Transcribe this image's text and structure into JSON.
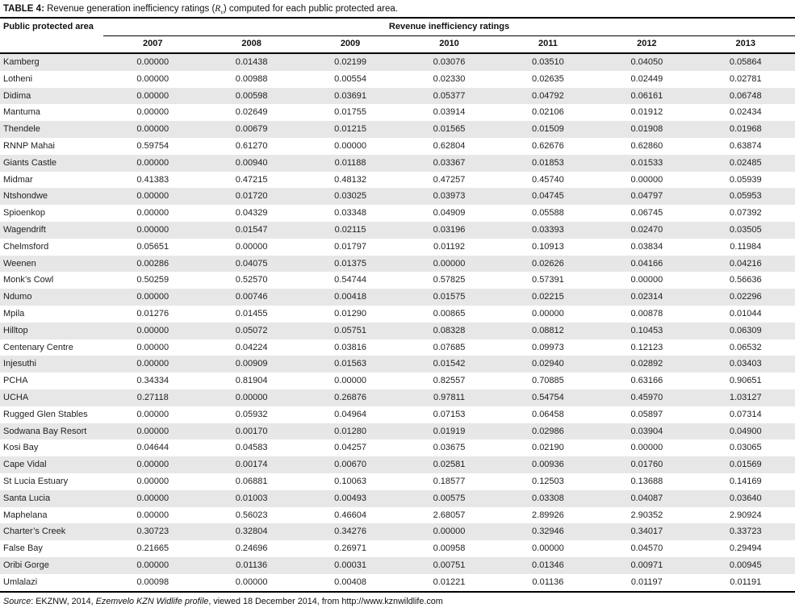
{
  "title": {
    "label_bold": "TABLE 4:",
    "text_before_rv": " Revenue generation inefficiency ratings (",
    "rv_symbol": "R",
    "rv_subscript": "v",
    "text_after_rv": ") computed for each public protected area."
  },
  "table": {
    "area_column_header": "Public protected area",
    "group_header": "Revenue inefficiency ratings",
    "years": [
      "2007",
      "2008",
      "2009",
      "2010",
      "2011",
      "2012",
      "2013"
    ],
    "rows": [
      {
        "area": "Kamberg",
        "values": [
          "0.00000",
          "0.01438",
          "0.02199",
          "0.03076",
          "0.03510",
          "0.04050",
          "0.05864"
        ]
      },
      {
        "area": "Lotheni",
        "values": [
          "0.00000",
          "0.00988",
          "0.00554",
          "0.02330",
          "0.02635",
          "0.02449",
          "0.02781"
        ]
      },
      {
        "area": "Didima",
        "values": [
          "0.00000",
          "0.00598",
          "0.03691",
          "0.05377",
          "0.04792",
          "0.06161",
          "0.06748"
        ]
      },
      {
        "area": "Mantuma",
        "values": [
          "0.00000",
          "0.02649",
          "0.01755",
          "0.03914",
          "0.02106",
          "0.01912",
          "0.02434"
        ]
      },
      {
        "area": "Thendele",
        "values": [
          "0.00000",
          "0.00679",
          "0.01215",
          "0.01565",
          "0.01509",
          "0.01908",
          "0.01968"
        ]
      },
      {
        "area": "RNNP Mahai",
        "values": [
          "0.59754",
          "0.61270",
          "0.00000",
          "0.62804",
          "0.62676",
          "0.62860",
          "0.63874"
        ]
      },
      {
        "area": "Giants Castle",
        "values": [
          "0.00000",
          "0.00940",
          "0.01188",
          "0.03367",
          "0.01853",
          "0.01533",
          "0.02485"
        ]
      },
      {
        "area": "Midmar",
        "values": [
          "0.41383",
          "0.47215",
          "0.48132",
          "0.47257",
          "0.45740",
          "0.00000",
          "0.05939"
        ]
      },
      {
        "area": "Ntshondwe",
        "values": [
          "0.00000",
          "0.01720",
          "0.03025",
          "0.03973",
          "0.04745",
          "0.04797",
          "0.05953"
        ]
      },
      {
        "area": "Spioenkop",
        "values": [
          "0.00000",
          "0.04329",
          "0.03348",
          "0.04909",
          "0.05588",
          "0.06745",
          "0.07392"
        ]
      },
      {
        "area": "Wagendrift",
        "values": [
          "0.00000",
          "0.01547",
          "0.02115",
          "0.03196",
          "0.03393",
          "0.02470",
          "0.03505"
        ]
      },
      {
        "area": "Chelmsford",
        "values": [
          "0.05651",
          "0.00000",
          "0.01797",
          "0.01192",
          "0.10913",
          "0.03834",
          "0.11984"
        ]
      },
      {
        "area": "Weenen",
        "values": [
          "0.00286",
          "0.04075",
          "0.01375",
          "0.00000",
          "0.02626",
          "0.04166",
          "0.04216"
        ]
      },
      {
        "area": "Monk’s Cowl",
        "values": [
          "0.50259",
          "0.52570",
          "0.54744",
          "0.57825",
          "0.57391",
          "0.00000",
          "0.56636"
        ]
      },
      {
        "area": "Ndumo",
        "values": [
          "0.00000",
          "0.00746",
          "0.00418",
          "0.01575",
          "0.02215",
          "0.02314",
          "0.02296"
        ]
      },
      {
        "area": "Mpila",
        "values": [
          "0.01276",
          "0.01455",
          "0.01290",
          "0.00865",
          "0.00000",
          "0.00878",
          "0.01044"
        ]
      },
      {
        "area": "Hilltop",
        "values": [
          "0.00000",
          "0.05072",
          "0.05751",
          "0.08328",
          "0.08812",
          "0.10453",
          "0.06309"
        ]
      },
      {
        "area": "Centenary Centre",
        "values": [
          "0.00000",
          "0.04224",
          "0.03816",
          "0.07685",
          "0.09973",
          "0.12123",
          "0.06532"
        ]
      },
      {
        "area": "Injesuthi",
        "values": [
          "0.00000",
          "0.00909",
          "0.01563",
          "0.01542",
          "0.02940",
          "0.02892",
          "0.03403"
        ]
      },
      {
        "area": "PCHA",
        "values": [
          "0.34334",
          "0.81904",
          "0.00000",
          "0.82557",
          "0.70885",
          "0.63166",
          "0.90651"
        ]
      },
      {
        "area": "UCHA",
        "values": [
          "0.27118",
          "0.00000",
          "0.26876",
          "0.97811",
          "0.54754",
          "0.45970",
          "1.03127"
        ]
      },
      {
        "area": "Rugged Glen Stables",
        "values": [
          "0.00000",
          "0.05932",
          "0.04964",
          "0.07153",
          "0.06458",
          "0.05897",
          "0.07314"
        ]
      },
      {
        "area": "Sodwana Bay Resort",
        "values": [
          "0.00000",
          "0.00170",
          "0.01280",
          "0.01919",
          "0.02986",
          "0.03904",
          "0.04900"
        ]
      },
      {
        "area": "Kosi Bay",
        "values": [
          "0.04644",
          "0.04583",
          "0.04257",
          "0.03675",
          "0.02190",
          "0.00000",
          "0.03065"
        ]
      },
      {
        "area": "Cape Vidal",
        "values": [
          "0.00000",
          "0.00174",
          "0.00670",
          "0.02581",
          "0.00936",
          "0.01760",
          "0.01569"
        ]
      },
      {
        "area": "St Lucia Estuary",
        "values": [
          "0.00000",
          "0.06881",
          "0.10063",
          "0.18577",
          "0.12503",
          "0.13688",
          "0.14169"
        ]
      },
      {
        "area": "Santa Lucia",
        "values": [
          "0.00000",
          "0.01003",
          "0.00493",
          "0.00575",
          "0.03308",
          "0.04087",
          "0.03640"
        ]
      },
      {
        "area": "Maphelana",
        "values": [
          "0.00000",
          "0.56023",
          "0.46604",
          "2.68057",
          "2.89926",
          "2.90352",
          "2.90924"
        ]
      },
      {
        "area": "Charter’s Creek",
        "values": [
          "0.30723",
          "0.32804",
          "0.34276",
          "0.00000",
          "0.32946",
          "0.34017",
          "0.33723"
        ]
      },
      {
        "area": "False Bay",
        "values": [
          "0.21665",
          "0.24696",
          "0.26971",
          "0.00958",
          "0.00000",
          "0.04570",
          "0.29494"
        ]
      },
      {
        "area": "Oribi Gorge",
        "values": [
          "0.00000",
          "0.01136",
          "0.00031",
          "0.00751",
          "0.01346",
          "0.00971",
          "0.00945"
        ]
      },
      {
        "area": "Umlalazi",
        "values": [
          "0.00098",
          "0.00000",
          "0.00408",
          "0.01221",
          "0.01136",
          "0.01197",
          "0.01191"
        ]
      }
    ]
  },
  "source": {
    "label": "Source",
    "text_1": ": EKZNW, 2014, ",
    "publication": "Ezemvelo KZN Widlife profile",
    "text_2": ", viewed 18 December 2014, from http://www.kznwildlife.com"
  },
  "colors": {
    "stripe": "#e7e7e7",
    "border": "#000000",
    "text": "#1f1f1f"
  }
}
